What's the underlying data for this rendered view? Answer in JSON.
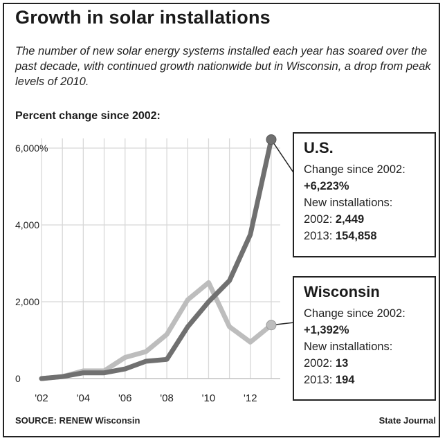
{
  "title": "Growth in solar installations",
  "subtitle": "The number of new solar energy systems installed each year has soared over the past decade, with continued growth nationwide but in Wisconsin, a drop from peak levels of 2010.",
  "section_label": "Percent change since 2002:",
  "source": "SOURCE: RENEW Wisconsin",
  "credit": "State Journal",
  "colors": {
    "us_line": "#707070",
    "wi_line": "#bdbdbd",
    "grid": "#d8d8d8",
    "frame": "#222222"
  },
  "callouts": {
    "us": {
      "name": "U.S.",
      "change_label": "Change since 2002:",
      "change_value": "+6,223%",
      "installs_label": "New installations:",
      "y2002_label": "2002:",
      "y2002_value": "2,449",
      "y2013_label": "2013:",
      "y2013_value": "154,858"
    },
    "wi": {
      "name": "Wisconsin",
      "change_label": "Change since 2002:",
      "change_value": "+1,392%",
      "installs_label": "New installations:",
      "y2002_label": "2002:",
      "y2002_value": "13",
      "y2013_label": "2013:",
      "y2013_value": "194"
    }
  },
  "chart_data": {
    "type": "line",
    "title": "Growth in solar installations",
    "ylabel": "Percent change since 2002:",
    "x": [
      2002,
      2003,
      2004,
      2005,
      2006,
      2007,
      2008,
      2009,
      2010,
      2011,
      2012,
      2013
    ],
    "xlim": [
      2002,
      2013
    ],
    "ylim": [
      0,
      6300
    ],
    "x_ticks": [
      2002,
      2004,
      2006,
      2008,
      2010,
      2012
    ],
    "x_tick_labels": [
      "'02",
      "'04",
      "'06",
      "'08",
      "'10",
      "'12"
    ],
    "y_ticks": [
      0,
      2000,
      4000,
      6000
    ],
    "y_tick_labels": [
      "0",
      "2,000",
      "4,000",
      "6,000%"
    ],
    "grid": true,
    "series": [
      {
        "name": "U.S.",
        "values": [
          0,
          50,
          150,
          150,
          250,
          450,
          500,
          1350,
          2000,
          2550,
          3750,
          6223
        ]
      },
      {
        "name": "Wisconsin",
        "values": [
          0,
          50,
          200,
          200,
          550,
          700,
          1150,
          2050,
          2500,
          1350,
          950,
          1392
        ]
      }
    ]
  }
}
